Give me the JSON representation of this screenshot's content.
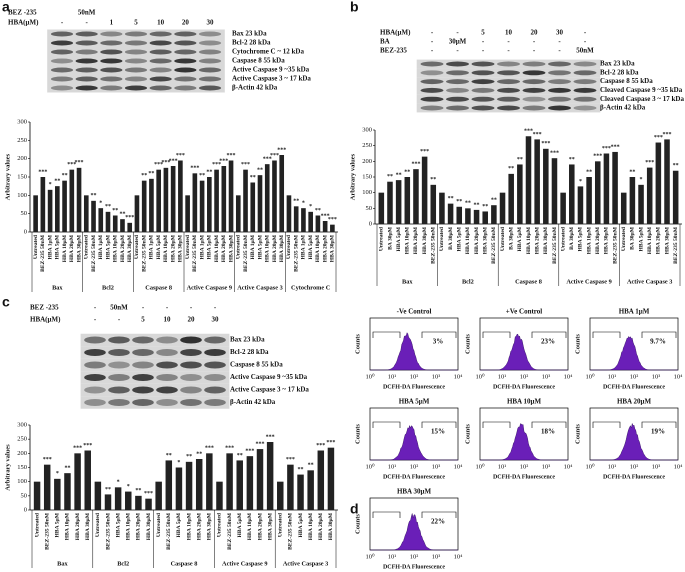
{
  "chart_data": [
    {
      "type": "bar",
      "panel_label": "a",
      "ylabel": "Arbitrary values",
      "ylim": [
        0,
        300
      ],
      "yticks": [
        0,
        50,
        100,
        150,
        200,
        250,
        300
      ],
      "color": "#222222",
      "blot": {
        "rows": [
          {
            "label": "BEZ -235",
            "cells": [
              null,
              "50nM",
              null,
              null,
              null,
              null,
              null
            ]
          },
          {
            "label": "HBA(μM)",
            "cells": [
              "-",
              "-",
              "1",
              "5",
              "10",
              "20",
              "30"
            ]
          }
        ],
        "bands": [
          "Bax 23 kDa",
          "Bcl-2  28 kDa",
          "Cytochrome C ~ 12 kDa",
          "Caspase 8 55 kDa",
          "Active Caspase 9 ~35 kDa",
          "Active Caspase 3 ~ 17 kDa",
          "β-Actin 42 kDa"
        ]
      },
      "groups": [
        {
          "name": "Bax",
          "categories": [
            "Untreated",
            "BEZ-235 50nM",
            "HBA 1μM",
            "HBA 5μM",
            "HBA 10μM",
            "HBA 20μM",
            "HBA 30μM"
          ],
          "values": [
            100,
            150,
            115,
            125,
            140,
            170,
            175
          ],
          "significance": [
            null,
            "***",
            "*",
            "**",
            "**",
            "***",
            "***"
          ]
        },
        {
          "name": "Bcl2",
          "categories": [
            "Untreated",
            "BEZ-235 50nM",
            "HBA 1μM",
            "HBA 5μM",
            "HBA 10μM",
            "HBA 20μM",
            "HBA 30μM"
          ],
          "values": [
            100,
            85,
            65,
            55,
            45,
            35,
            25
          ],
          "significance": [
            null,
            "**",
            "*",
            "**",
            "**",
            "**",
            "***"
          ]
        },
        {
          "name": "Caspase 8",
          "categories": [
            "Untreated",
            "BEZ-235 50nM",
            "HBA 1μM",
            "HBA 5μM",
            "HBA 10μM",
            "HBA 20μM",
            "HBA 30μM"
          ],
          "values": [
            100,
            140,
            145,
            170,
            175,
            180,
            195
          ],
          "significance": [
            null,
            "**",
            "**",
            "***",
            "***",
            "***",
            "***"
          ]
        },
        {
          "name": "Active Caspase 9",
          "categories": [
            "Untreated",
            "BEZ-235 50nM",
            "HBA 1μM",
            "HBA 5μM",
            "HBA 10μM",
            "HBA 20μM",
            "HBA 30μM"
          ],
          "values": [
            100,
            160,
            140,
            150,
            170,
            180,
            195
          ],
          "significance": [
            null,
            "***",
            "**",
            "**",
            "***",
            "***",
            "***"
          ]
        },
        {
          "name": "Active Caspase 3",
          "categories": [
            "Untreated",
            "BEZ-235 50nM",
            "HBA 1μM",
            "HBA 5μM",
            "HBA 10μM",
            "HBA 20μM",
            "HBA 30μM"
          ],
          "values": [
            100,
            170,
            135,
            155,
            185,
            195,
            210
          ],
          "significance": [
            null,
            "***",
            "**",
            "**",
            "***",
            "***",
            "***"
          ]
        },
        {
          "name": "Cytochrome C",
          "categories": [
            "Untreated",
            "BEZ-235 50nM",
            "HBA 1μM",
            "HBA 5μM",
            "HBA 10μM",
            "HBA 20μM",
            "HBA 30μM"
          ],
          "values": [
            100,
            70,
            65,
            55,
            45,
            30,
            20
          ],
          "significance": [
            null,
            "**",
            "*",
            "*",
            "**",
            "***",
            "***"
          ]
        }
      ]
    },
    {
      "type": "bar",
      "panel_label": "b",
      "ylabel": "Arbitrary values",
      "ylim": [
        0,
        300
      ],
      "yticks": [
        0,
        50,
        100,
        150,
        200,
        250,
        300
      ],
      "color": "#222222",
      "blot": {
        "rows": [
          {
            "label": "HBA(μM)",
            "cells": [
              "-",
              "-",
              "5",
              "10",
              "20",
              "30",
              "-"
            ]
          },
          {
            "label": "BA",
            "cells": [
              "-",
              "30μM",
              "-",
              "-",
              "-",
              "-",
              "-"
            ]
          },
          {
            "label": "BEZ-235",
            "cells": [
              "-",
              "-",
              "-",
              "-",
              "-",
              "-",
              "50nM"
            ]
          }
        ],
        "bands": [
          "Bax 23 kDa",
          "Bcl-2  28 kDa",
          "Caspase 8 55 kDa",
          "Cleaved Caspase 9 ~35 kDa",
          "Cleaved Caspase 3 ~ 17 kDa",
          "β-Actin 42 kDa"
        ]
      },
      "groups": [
        {
          "name": "Bax",
          "categories": [
            "Untreated",
            "BA 30μM",
            "HBA 5μM",
            "HBA 10μM",
            "HBA 20μM",
            "HBA 30μM",
            "BEZ-235 50nM"
          ],
          "values": [
            100,
            135,
            140,
            150,
            175,
            215,
            125
          ],
          "significance": [
            null,
            "**",
            "**",
            "**",
            "***",
            "***",
            "**"
          ]
        },
        {
          "name": "Bcl2",
          "categories": [
            "Untreated",
            "BA 30μM",
            "HBA 5μM",
            "HBA 10μM",
            "HBA 20μM",
            "HBA 30μM",
            "BEZ-235 50nM"
          ],
          "values": [
            100,
            65,
            55,
            50,
            45,
            40,
            60
          ],
          "significance": [
            null,
            "**",
            "**",
            "**",
            "**",
            "**",
            "**"
          ]
        },
        {
          "name": "Caspase 8",
          "categories": [
            "Untreated",
            "BA 30μM",
            "HBA 5μM",
            "HBA 10μM",
            "HBA 20μM",
            "HBA 30μM",
            "BEZ-235 50nM"
          ],
          "values": [
            100,
            160,
            190,
            280,
            270,
            240,
            210
          ],
          "significance": [
            null,
            "**",
            "**",
            "***",
            "***",
            "***",
            "***"
          ]
        },
        {
          "name": "Active Caspase 9",
          "categories": [
            "Untreated",
            "BA 30μM",
            "HBA 5μM",
            "HBA 10μM",
            "HBA 20μM",
            "HBA 30μM",
            "BEZ-235 50nM"
          ],
          "values": [
            100,
            190,
            120,
            150,
            200,
            225,
            230
          ],
          "significance": [
            null,
            "**",
            "*",
            "**",
            "***",
            "***",
            "***"
          ]
        },
        {
          "name": "Active Caspase 3",
          "categories": [
            "Untreated",
            "BA 30μM",
            "HBA 5μM",
            "HBA 10μM",
            "HBA 20μM",
            "HBA 30μM",
            "BEZ-235 50nM"
          ],
          "values": [
            100,
            150,
            125,
            180,
            260,
            270,
            170
          ],
          "significance": [
            null,
            "**",
            "*",
            "***",
            "***",
            "***",
            "**"
          ]
        }
      ]
    },
    {
      "type": "bar",
      "panel_label": "c",
      "ylabel": "Arbitrary values",
      "ylim": [
        0,
        300
      ],
      "yticks": [
        0,
        50,
        100,
        150,
        200,
        250,
        300
      ],
      "color": "#222222",
      "blot": {
        "rows": [
          {
            "label": "BEZ -235",
            "cells": [
              "-",
              "50nM",
              "-",
              "-",
              "-",
              "-"
            ]
          },
          {
            "label": "HBA(μM)",
            "cells": [
              "-",
              "-",
              "5",
              "10",
              "20",
              "30"
            ]
          }
        ],
        "bands": [
          "Bax  23 kDa",
          "Bcl-2  28 kDa",
          "Caspase 8 55 kDa",
          "Active Caspase 9 ~35 kDa",
          "Active Caspase 3 ~ 17 kDa",
          "β-Actin 42 kDa"
        ]
      },
      "groups": [
        {
          "name": "Bax",
          "categories": [
            "Untreated",
            "BEZ-235 50nM",
            "HBA 5μM",
            "HBA 10μM",
            "HBA 20μM",
            "HBA 30μM"
          ],
          "values": [
            100,
            160,
            110,
            130,
            200,
            210
          ],
          "significance": [
            null,
            "***",
            "*",
            "**",
            "***",
            "***"
          ]
        },
        {
          "name": "Bcl2",
          "categories": [
            "Untreated",
            "BEZ-235 50nM",
            "HBA 5μM",
            "HBA 10μM",
            "HBA 20μM",
            "HBA 30μM"
          ],
          "values": [
            100,
            55,
            80,
            65,
            50,
            40
          ],
          "significance": [
            null,
            "**",
            "*",
            "*",
            "**",
            "***"
          ]
        },
        {
          "name": "Caspase 8",
          "categories": [
            "Untreated",
            "BEZ-235 50nM",
            "HBA 5μM",
            "HBA 10μM",
            "HBA 20μM",
            "HBA 30μM"
          ],
          "values": [
            100,
            175,
            150,
            170,
            180,
            200
          ],
          "significance": [
            null,
            "**",
            "*",
            "**",
            "**",
            "***"
          ]
        },
        {
          "name": "Active Caspase 9",
          "categories": [
            "Untreated",
            "BEZ-235 50nM",
            "HBA 5μM",
            "HBA 10μM",
            "HBA 20μM",
            "HBA 30μM"
          ],
          "values": [
            100,
            200,
            175,
            190,
            215,
            240
          ],
          "significance": [
            null,
            "***",
            "**",
            "***",
            "***",
            "***"
          ]
        },
        {
          "name": "Active Caspase 3",
          "categories": [
            "Untreated",
            "BEZ-235 50nM",
            "HBA 5μM",
            "HBA 10μM",
            "HBA 20μM",
            "HBA 30μM"
          ],
          "values": [
            100,
            160,
            125,
            140,
            210,
            220
          ],
          "significance": [
            null,
            "***",
            "**",
            "**",
            "***",
            "***"
          ]
        }
      ]
    }
  ],
  "flow": {
    "panel_label": "d",
    "ylabel": "Counts",
    "xlabel": "DCFH-DA Fluorescence",
    "xticks": [
      "10⁰",
      "10¹",
      "10²",
      "10³",
      "10⁴"
    ],
    "panels": [
      {
        "title": "-Ve Control",
        "percent": "3%"
      },
      {
        "title": "+Ve Control",
        "percent": "23%"
      },
      {
        "title": "HBA 1μM",
        "percent": "9.7%"
      },
      {
        "title": "HBA  5μM",
        "percent": "15%"
      },
      {
        "title": "HBA 10μM",
        "percent": "18%"
      },
      {
        "title": "HBA  20μM",
        "percent": "19%"
      },
      {
        "title": "HBA 30μM",
        "percent": "22%"
      }
    ]
  }
}
